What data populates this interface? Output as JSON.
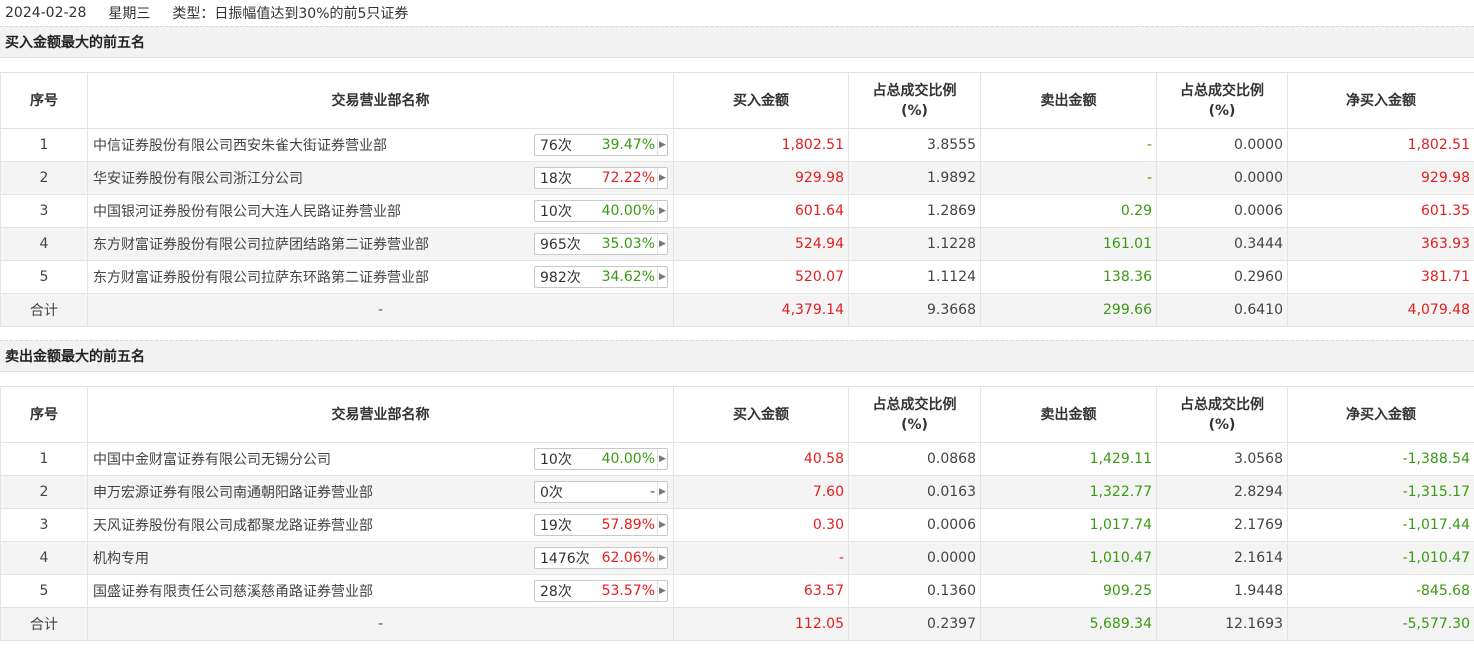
{
  "header": {
    "date": "2024-02-28",
    "weekday": "星期三",
    "type_label": "类型：日振幅值达到30%的前5只证券"
  },
  "columns": {
    "idx": "序号",
    "name": "交易营业部名称",
    "buy": "买入金额",
    "buy_ratio_line1": "占总成交比例",
    "buy_ratio_line2": "(%)",
    "sell": "卖出金额",
    "sell_ratio_line1": "占总成交比例",
    "sell_ratio_line2": "(%)",
    "net": "净买入金额"
  },
  "buy_section": {
    "title": "买入金额最大的前五名",
    "rows": [
      {
        "idx": "1",
        "name": "中信证券股份有限公司西安朱雀大街证券营业部",
        "count": "76次",
        "rate": "39.47%",
        "rate_color": "green",
        "buy": "1,802.51",
        "buy_ratio": "3.8555",
        "sell": "-",
        "sell_ratio": "0.0000",
        "net": "1,802.51",
        "net_color": "red"
      },
      {
        "idx": "2",
        "name": "华安证券股份有限公司浙江分公司",
        "count": "18次",
        "rate": "72.22%",
        "rate_color": "red",
        "buy": "929.98",
        "buy_ratio": "1.9892",
        "sell": "-",
        "sell_ratio": "0.0000",
        "net": "929.98",
        "net_color": "red"
      },
      {
        "idx": "3",
        "name": "中国银河证券股份有限公司大连人民路证券营业部",
        "count": "10次",
        "rate": "40.00%",
        "rate_color": "green",
        "buy": "601.64",
        "buy_ratio": "1.2869",
        "sell": "0.29",
        "sell_ratio": "0.0006",
        "net": "601.35",
        "net_color": "red"
      },
      {
        "idx": "4",
        "name": "东方财富证券股份有限公司拉萨团结路第二证券营业部",
        "count": "965次",
        "rate": "35.03%",
        "rate_color": "green",
        "buy": "524.94",
        "buy_ratio": "1.1228",
        "sell": "161.01",
        "sell_ratio": "0.3444",
        "net": "363.93",
        "net_color": "red"
      },
      {
        "idx": "5",
        "name": "东方财富证券股份有限公司拉萨东环路第二证券营业部",
        "count": "982次",
        "rate": "34.62%",
        "rate_color": "green",
        "buy": "520.07",
        "buy_ratio": "1.1124",
        "sell": "138.36",
        "sell_ratio": "0.2960",
        "net": "381.71",
        "net_color": "red"
      }
    ],
    "total": {
      "label": "合计",
      "name": "-",
      "buy": "4,379.14",
      "buy_ratio": "9.3668",
      "sell": "299.66",
      "sell_ratio": "0.6410",
      "net": "4,079.48",
      "net_color": "red"
    }
  },
  "sell_section": {
    "title": "卖出金额最大的前五名",
    "rows": [
      {
        "idx": "1",
        "name": "中国中金财富证券有限公司无锡分公司",
        "count": "10次",
        "rate": "40.00%",
        "rate_color": "green",
        "buy": "40.58",
        "buy_ratio": "0.0868",
        "sell": "1,429.11",
        "sell_ratio": "3.0568",
        "net": "-1,388.54",
        "net_color": "green"
      },
      {
        "idx": "2",
        "name": "申万宏源证券有限公司南通朝阳路证券营业部",
        "count": "0次",
        "rate": "-",
        "rate_color": "dark",
        "buy": "7.60",
        "buy_ratio": "0.0163",
        "sell": "1,322.77",
        "sell_ratio": "2.8294",
        "net": "-1,315.17",
        "net_color": "green"
      },
      {
        "idx": "3",
        "name": "天风证券股份有限公司成都聚龙路证券营业部",
        "count": "19次",
        "rate": "57.89%",
        "rate_color": "red",
        "buy": "0.30",
        "buy_ratio": "0.0006",
        "sell": "1,017.74",
        "sell_ratio": "2.1769",
        "net": "-1,017.44",
        "net_color": "green"
      },
      {
        "idx": "4",
        "name": "机构专用",
        "count": "1476次",
        "rate": "62.06%",
        "rate_color": "red",
        "buy": "-",
        "buy_ratio": "0.0000",
        "sell": "1,010.47",
        "sell_ratio": "2.1614",
        "net": "-1,010.47",
        "net_color": "green"
      },
      {
        "idx": "5",
        "name": "国盛证券有限责任公司慈溪慈甬路证券营业部",
        "count": "28次",
        "rate": "53.57%",
        "rate_color": "red",
        "buy": "63.57",
        "buy_ratio": "0.1360",
        "sell": "909.25",
        "sell_ratio": "1.9448",
        "net": "-845.68",
        "net_color": "green"
      }
    ],
    "total": {
      "label": "合计",
      "name": "-",
      "buy": "112.05",
      "buy_ratio": "0.2397",
      "sell": "5,689.34",
      "sell_ratio": "12.1693",
      "net": "-5,577.30",
      "net_color": "green"
    }
  },
  "colors": {
    "red": "#e41e1e",
    "green": "#3a9a13",
    "header_bg": "#f2f2f2",
    "row_alt": "#f4f4f4"
  },
  "icons": {
    "stat_arrow": "chevron-right-icon"
  }
}
